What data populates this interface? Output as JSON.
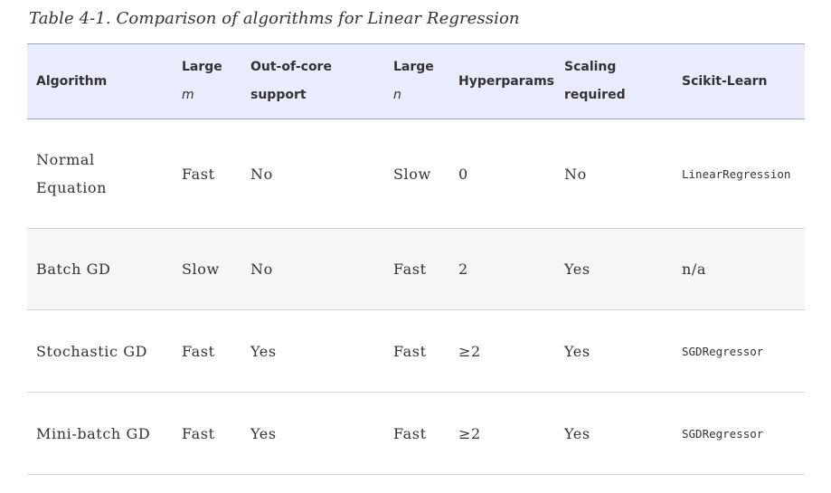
{
  "caption": "Table 4-1. Comparison of algorithms for Linear Regression",
  "table": {
    "headers": {
      "algorithm": "Algorithm",
      "large_m_label": "Large",
      "large_m_var": "m",
      "out_of_core_line1": "Out-of-core",
      "out_of_core_line2": "support",
      "large_n_label": "Large",
      "large_n_var": "n",
      "hyperparams": "Hyperparams",
      "scaling_line1": "Scaling",
      "scaling_line2": "required",
      "scikit_learn": "Scikit-Learn"
    },
    "rows": [
      {
        "algorithm_line1": "Normal",
        "algorithm_line2": "Equation",
        "large_m": "Fast",
        "out_of_core": "No",
        "large_n": "Slow",
        "hyperparams": "0",
        "scaling": "No",
        "scikit_learn": "LinearRegression"
      },
      {
        "algorithm": "Batch GD",
        "large_m": "Slow",
        "out_of_core": "No",
        "large_n": "Fast",
        "hyperparams": "2",
        "scaling": "Yes",
        "scikit_learn": "n/a"
      },
      {
        "algorithm": "Stochastic GD",
        "large_m": "Fast",
        "out_of_core": "Yes",
        "large_n": "Fast",
        "hyperparams": "≥2",
        "scaling": "Yes",
        "scikit_learn": "SGDRegressor"
      },
      {
        "algorithm": "Mini-batch GD",
        "large_m": "Fast",
        "out_of_core": "Yes",
        "large_n": "Fast",
        "hyperparams": "≥2",
        "scaling": "Yes",
        "scikit_learn": "SGDRegressor"
      }
    ]
  }
}
